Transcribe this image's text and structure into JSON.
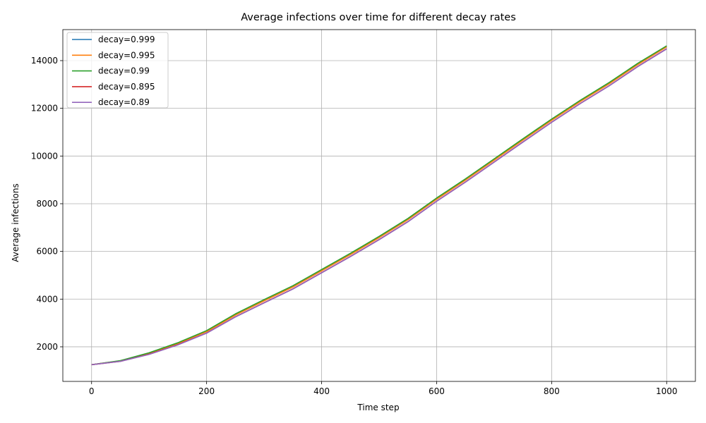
{
  "chart_data": {
    "type": "line",
    "title": "Average infections over time for different decay rates",
    "xlabel": "Time step",
    "ylabel": "Average infections",
    "xlim": [
      -50,
      1050
    ],
    "ylim": [
      550,
      15300
    ],
    "xticks": [
      0,
      200,
      400,
      600,
      800,
      1000
    ],
    "yticks": [
      2000,
      4000,
      6000,
      8000,
      10000,
      12000,
      14000
    ],
    "grid": true,
    "legend_position": "top-left",
    "x": [
      0,
      50,
      100,
      150,
      200,
      250,
      300,
      350,
      400,
      450,
      500,
      550,
      600,
      650,
      700,
      750,
      800,
      850,
      900,
      950,
      1000
    ],
    "series": [
      {
        "name": "decay=0.999",
        "color": "#1f77b4",
        "values": [
          1250,
          1410,
          1730,
          2140,
          2640,
          3330,
          3930,
          4510,
          5190,
          5870,
          6580,
          7330,
          8190,
          8990,
          9830,
          10670,
          11500,
          12290,
          13030,
          13840,
          14580
        ]
      },
      {
        "name": "decay=0.995",
        "color": "#ff7f0e",
        "values": [
          1250,
          1410,
          1730,
          2140,
          2640,
          3330,
          3930,
          4510,
          5190,
          5870,
          6580,
          7330,
          8190,
          8990,
          9830,
          10670,
          11500,
          12290,
          13030,
          13840,
          14580
        ]
      },
      {
        "name": "decay=0.99",
        "color": "#2ca02c",
        "values": [
          1250,
          1420,
          1750,
          2170,
          2680,
          3380,
          3980,
          4560,
          5240,
          5920,
          6630,
          7380,
          8240,
          9040,
          9880,
          10720,
          11550,
          12340,
          13080,
          13890,
          14620
        ]
      },
      {
        "name": "decay=0.895",
        "color": "#d62728",
        "values": [
          1250,
          1390,
          1690,
          2090,
          2580,
          3260,
          3850,
          4430,
          5110,
          5790,
          6500,
          7250,
          8110,
          8910,
          9750,
          10590,
          11420,
          12210,
          12950,
          13760,
          14500
        ]
      },
      {
        "name": "decay=0.89",
        "color": "#9467bd",
        "values": [
          1250,
          1390,
          1680,
          2080,
          2570,
          3250,
          3840,
          4420,
          5100,
          5780,
          6490,
          7240,
          8100,
          8900,
          9740,
          10580,
          11410,
          12200,
          12940,
          13750,
          14490
        ]
      }
    ]
  }
}
